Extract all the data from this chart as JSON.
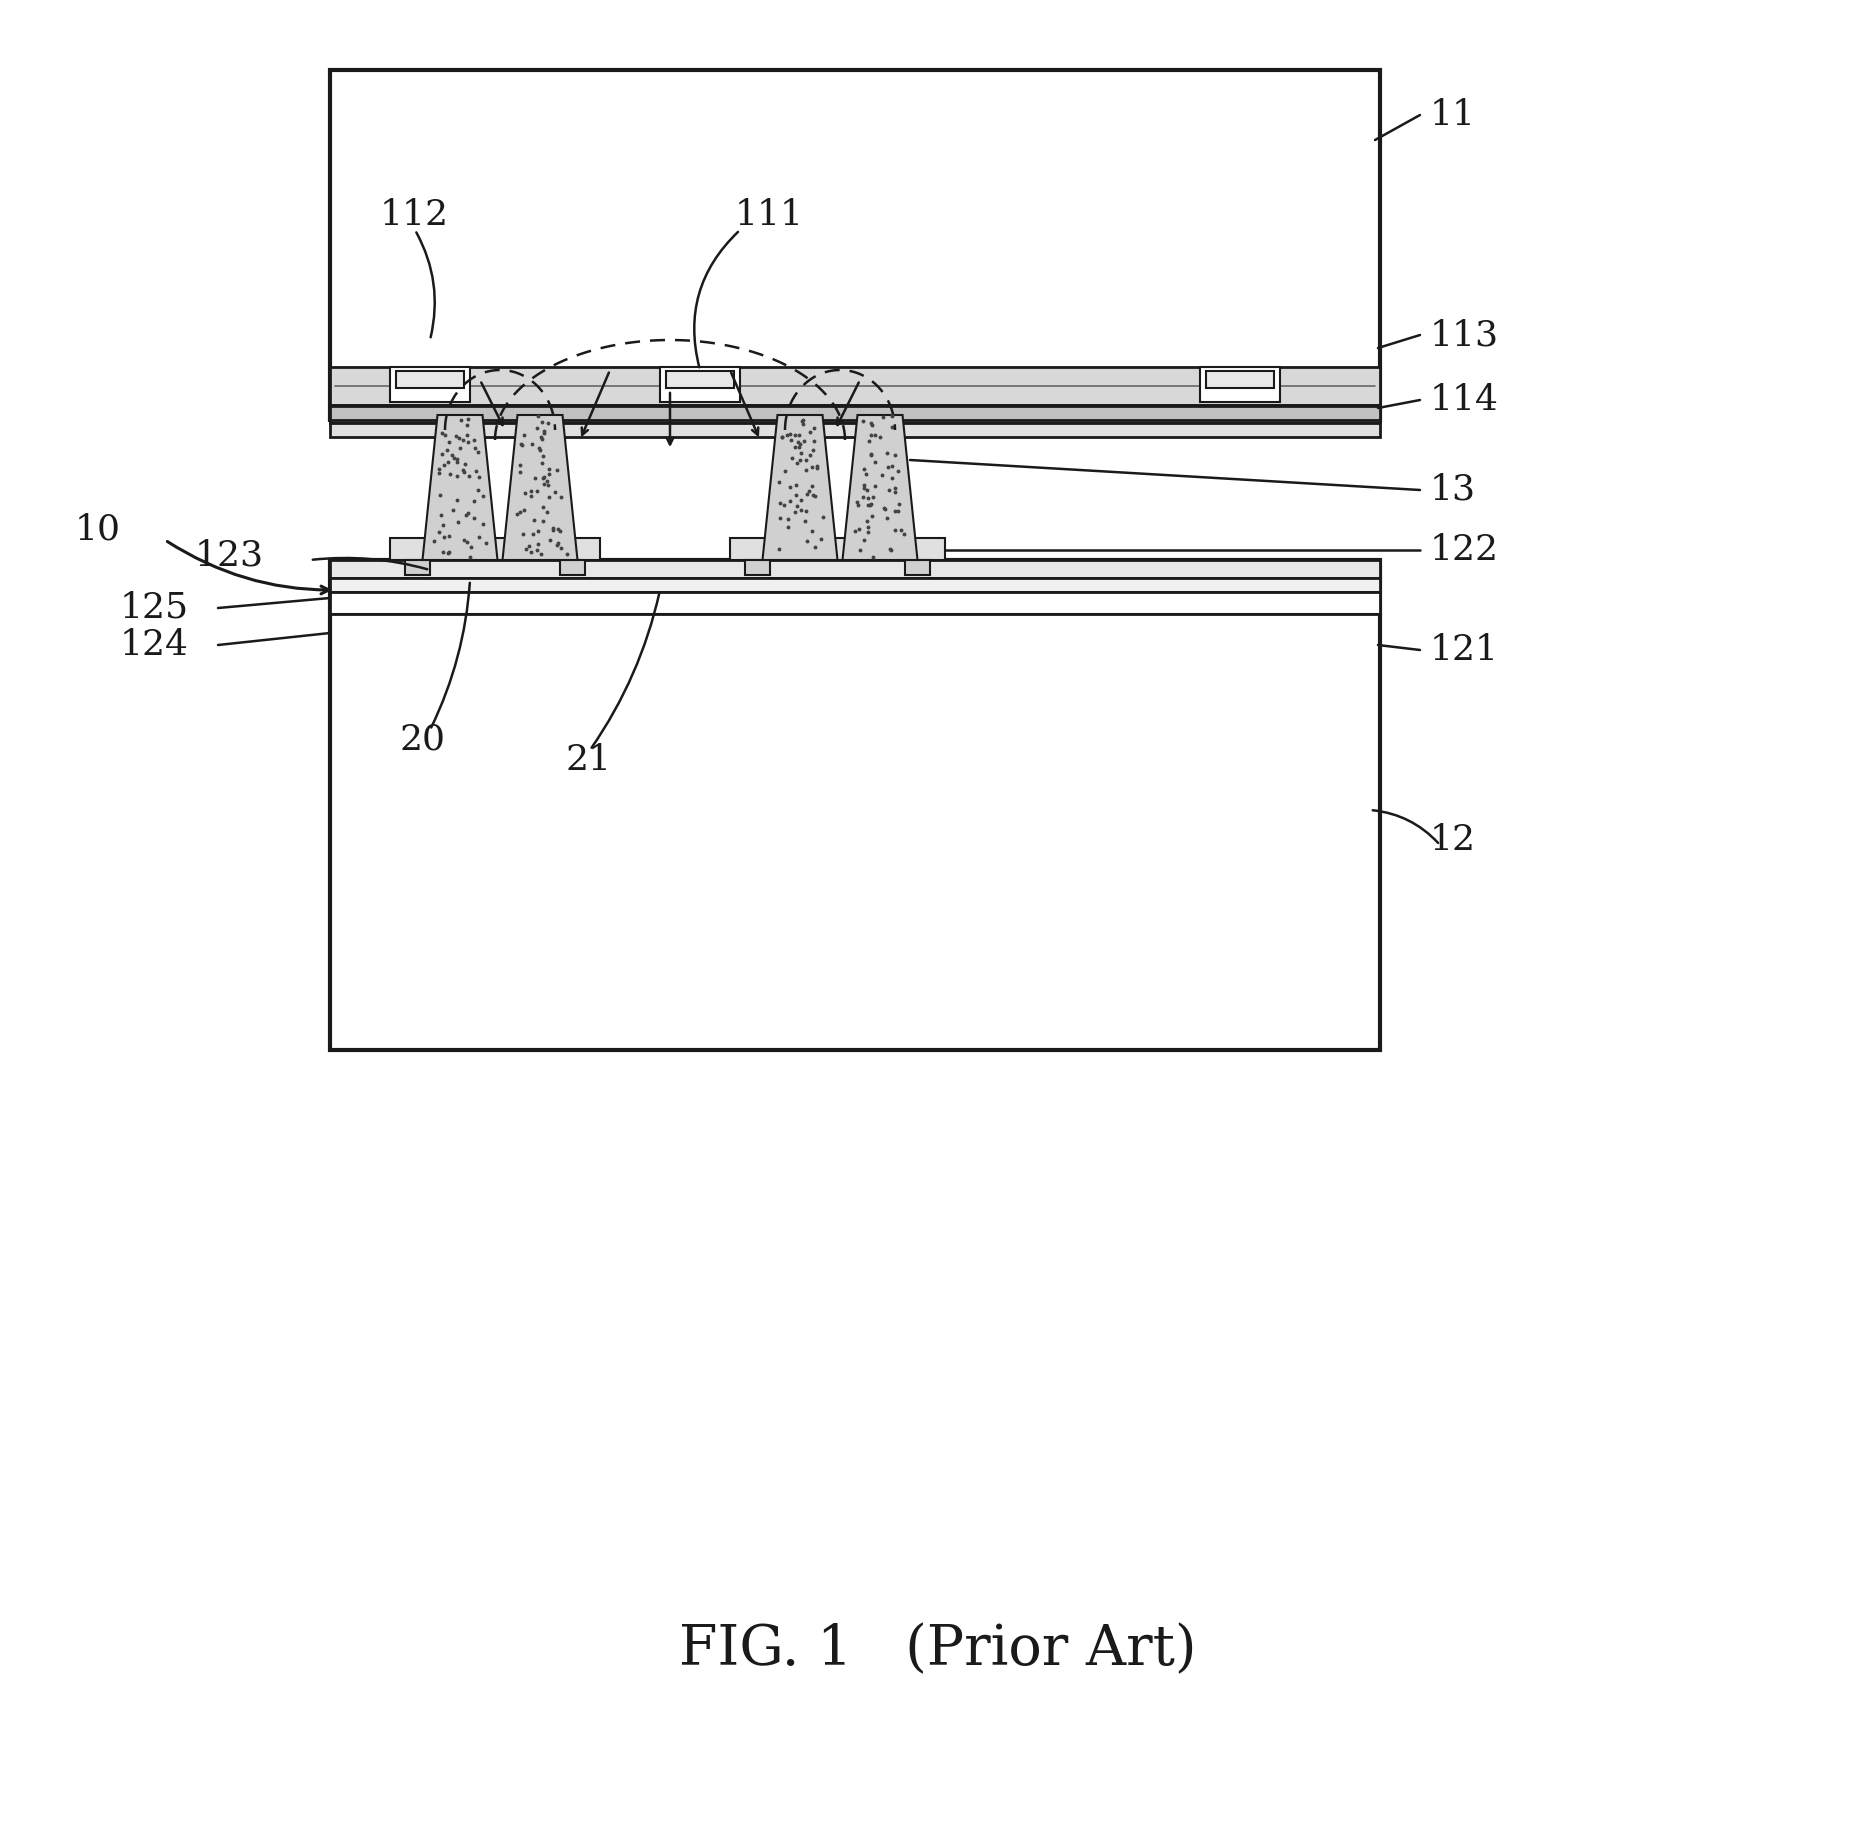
{
  "fig_width": 18.75,
  "fig_height": 18.21,
  "dpi": 100,
  "bg_color": "#ffffff",
  "line_color": "#1a1a1a",
  "caption": "FIG. 1   (Prior Art)",
  "caption_fontsize": 40,
  "label_fontsize": 26
}
